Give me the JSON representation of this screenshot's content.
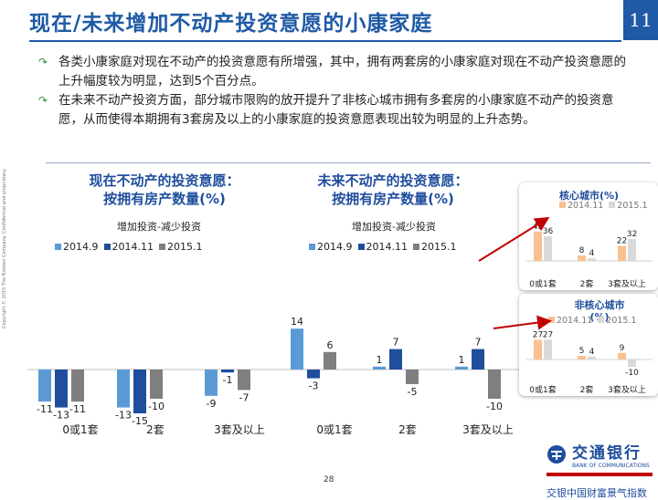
{
  "header": {
    "title": "现在/未来增加不动产投资意愿的小康家庭",
    "page_badge": "11"
  },
  "bullets": [
    "各类小康家庭对现在不动产的投资意愿有所增强，其中，拥有两套房的小康家庭对现在不动产投资意愿的上升幅度较为明显，达到5个百分点。",
    "在未来不动产投资方面，部分城市限购的放开提升了非核心城市拥有多套房的小康家庭不动产的投资意愿，从而使得本期拥有3套房及以上的小康家庭的投资意愿表现出较为明显的上升态势。"
  ],
  "colors": {
    "s1": "#5b9bd5",
    "s2": "#1f4e9d",
    "s3": "#7f7f7f",
    "o1": "#fac090",
    "o2": "#d9d9d9",
    "accent": "#1f5aa6",
    "arrow": "#c00000"
  },
  "charts": {
    "present": {
      "title1": "现在不动产的投资意愿：",
      "title2": "按拥有房产数量(%)",
      "subtitle": "增加投资-减少投资"
    },
    "future": {
      "title1": "未来不动产的投资意愿：",
      "title2": "按拥有房产数量(%)",
      "subtitle": "增加投资-减少投资"
    },
    "core": {
      "title": "核心城市(%)"
    },
    "noncore": {
      "title": "非核心城市(%)"
    }
  },
  "chart_data": [
    {
      "id": "present",
      "type": "bar",
      "title": "现在不动产的投资意愿：按拥有房产数量(%)",
      "subtitle": "增加投资-减少投资",
      "categories": [
        "0或1套",
        "2套",
        "3套及以上"
      ],
      "series": [
        {
          "name": "2014.9",
          "values": [
            -11,
            -13,
            -9
          ]
        },
        {
          "name": "2014.11",
          "values": [
            -13,
            -15,
            -1
          ]
        },
        {
          "name": "2015.1",
          "values": [
            -11,
            -10,
            -7
          ]
        }
      ]
    },
    {
      "id": "future",
      "type": "bar",
      "title": "未来不动产的投资意愿：按拥有房产数量(%)",
      "subtitle": "增加投资-减少投资",
      "categories": [
        "0或1套",
        "2套",
        "3套及以上"
      ],
      "series": [
        {
          "name": "2014.9",
          "values": [
            14,
            1,
            1
          ]
        },
        {
          "name": "2014.11",
          "values": [
            -3,
            7,
            7
          ]
        },
        {
          "name": "2015.1",
          "values": [
            6,
            -5,
            -10
          ]
        }
      ]
    },
    {
      "id": "core",
      "type": "bar",
      "title": "核心城市(%)",
      "categories": [
        "0或1套",
        "2套",
        "3套及以上"
      ],
      "series": [
        {
          "name": "2014.11",
          "values": [
            43,
            8,
            22
          ]
        },
        {
          "name": "2015.1",
          "values": [
            36,
            4,
            32
          ]
        }
      ]
    },
    {
      "id": "noncore",
      "type": "bar",
      "title": "非核心城市(%)",
      "categories": [
        "0或1套",
        "2套",
        "3套及以上"
      ],
      "series": [
        {
          "name": "2014.11",
          "values": [
            27,
            5,
            9
          ]
        },
        {
          "name": "2015.1",
          "values": [
            27,
            4,
            -10
          ]
        }
      ]
    }
  ],
  "footer": {
    "copyright": "Copyright © 2015 The Nielsen Company. Confidential and proprietary.",
    "bank_name": "交通银行",
    "bank_en": "BANK OF COMMUNICATIONS",
    "bank_slogan": "交银中国财富景气指数",
    "page_number": "28"
  }
}
